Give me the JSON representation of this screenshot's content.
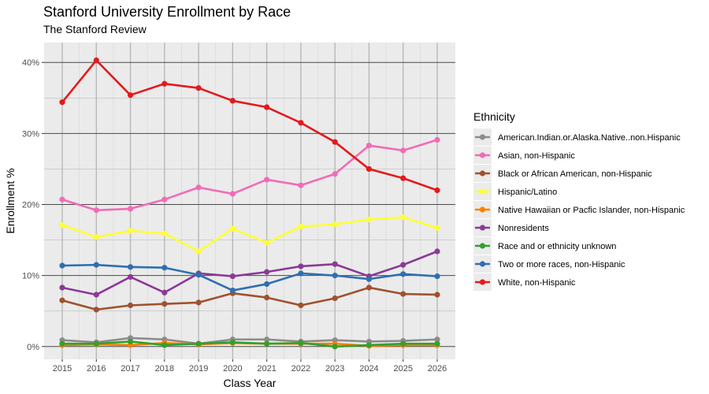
{
  "chart_data": {
    "type": "line",
    "title": "Stanford University Enrollment by Race",
    "subtitle": "The Stanford Review",
    "xlabel": "Class Year",
    "ylabel": "Enrollment %",
    "x": [
      2015,
      2016,
      2017,
      2018,
      2019,
      2020,
      2021,
      2022,
      2023,
      2024,
      2025,
      2026
    ],
    "y_ticks": [
      "0%",
      "10%",
      "20%",
      "30%",
      "40%"
    ],
    "ylim": [
      -1.8,
      42.8
    ],
    "grid": true,
    "legend_title": "Ethnicity",
    "legend_position": "right",
    "series": [
      {
        "name": "American.Indian.or.Alaska.Native..non.Hispanic",
        "color": "#8c8c8c",
        "values": [
          0.9,
          0.6,
          1.2,
          1.0,
          0.4,
          1.0,
          1.0,
          0.7,
          0.9,
          0.7,
          0.8,
          1.0
        ]
      },
      {
        "name": "Asian, non-Hispanic",
        "color": "#f26bb6",
        "values": [
          20.7,
          19.2,
          19.4,
          20.7,
          22.4,
          21.5,
          23.5,
          22.7,
          24.3,
          28.3,
          27.6,
          29.1
        ]
      },
      {
        "name": "Black or African American, non-Hispanic",
        "color": "#a0522d",
        "values": [
          6.5,
          5.2,
          5.8,
          6.0,
          6.2,
          7.5,
          6.9,
          5.8,
          6.8,
          8.3,
          7.4,
          7.3
        ]
      },
      {
        "name": "Hispanic/Latino",
        "color": "#ffff33",
        "values": [
          17.1,
          15.4,
          16.3,
          15.9,
          13.4,
          16.6,
          14.6,
          16.9,
          17.2,
          17.9,
          18.2,
          16.7
        ]
      },
      {
        "name": "Native Hawaiian or Pacfic Islander, non-Hispanic",
        "color": "#ff7f00",
        "values": [
          0.2,
          0.3,
          0.2,
          0.5,
          0.3,
          0.5,
          0.4,
          0.4,
          0.4,
          0.1,
          0.2,
          0.2
        ]
      },
      {
        "name": "Nonresidents",
        "color": "#8b3a96",
        "values": [
          8.3,
          7.3,
          9.8,
          7.6,
          10.3,
          9.9,
          10.5,
          11.3,
          11.6,
          9.9,
          11.5,
          13.4
        ]
      },
      {
        "name": "Race and or ethnicity unknown",
        "color": "#33a02c",
        "values": [
          0.4,
          0.4,
          0.7,
          0.2,
          0.4,
          0.6,
          0.4,
          0.5,
          0.0,
          0.2,
          0.4,
          0.4
        ]
      },
      {
        "name": "Two or more races, non-Hispanic",
        "color": "#2f6fb0",
        "values": [
          11.4,
          11.5,
          11.2,
          11.1,
          10.1,
          7.9,
          8.8,
          10.3,
          10.0,
          9.5,
          10.2,
          9.9
        ]
      },
      {
        "name": "White, non-Hispanic",
        "color": "#e41a1c",
        "values": [
          34.4,
          40.3,
          35.4,
          37.0,
          36.4,
          34.6,
          33.7,
          31.5,
          28.8,
          25.0,
          23.7,
          22.0
        ]
      }
    ]
  }
}
